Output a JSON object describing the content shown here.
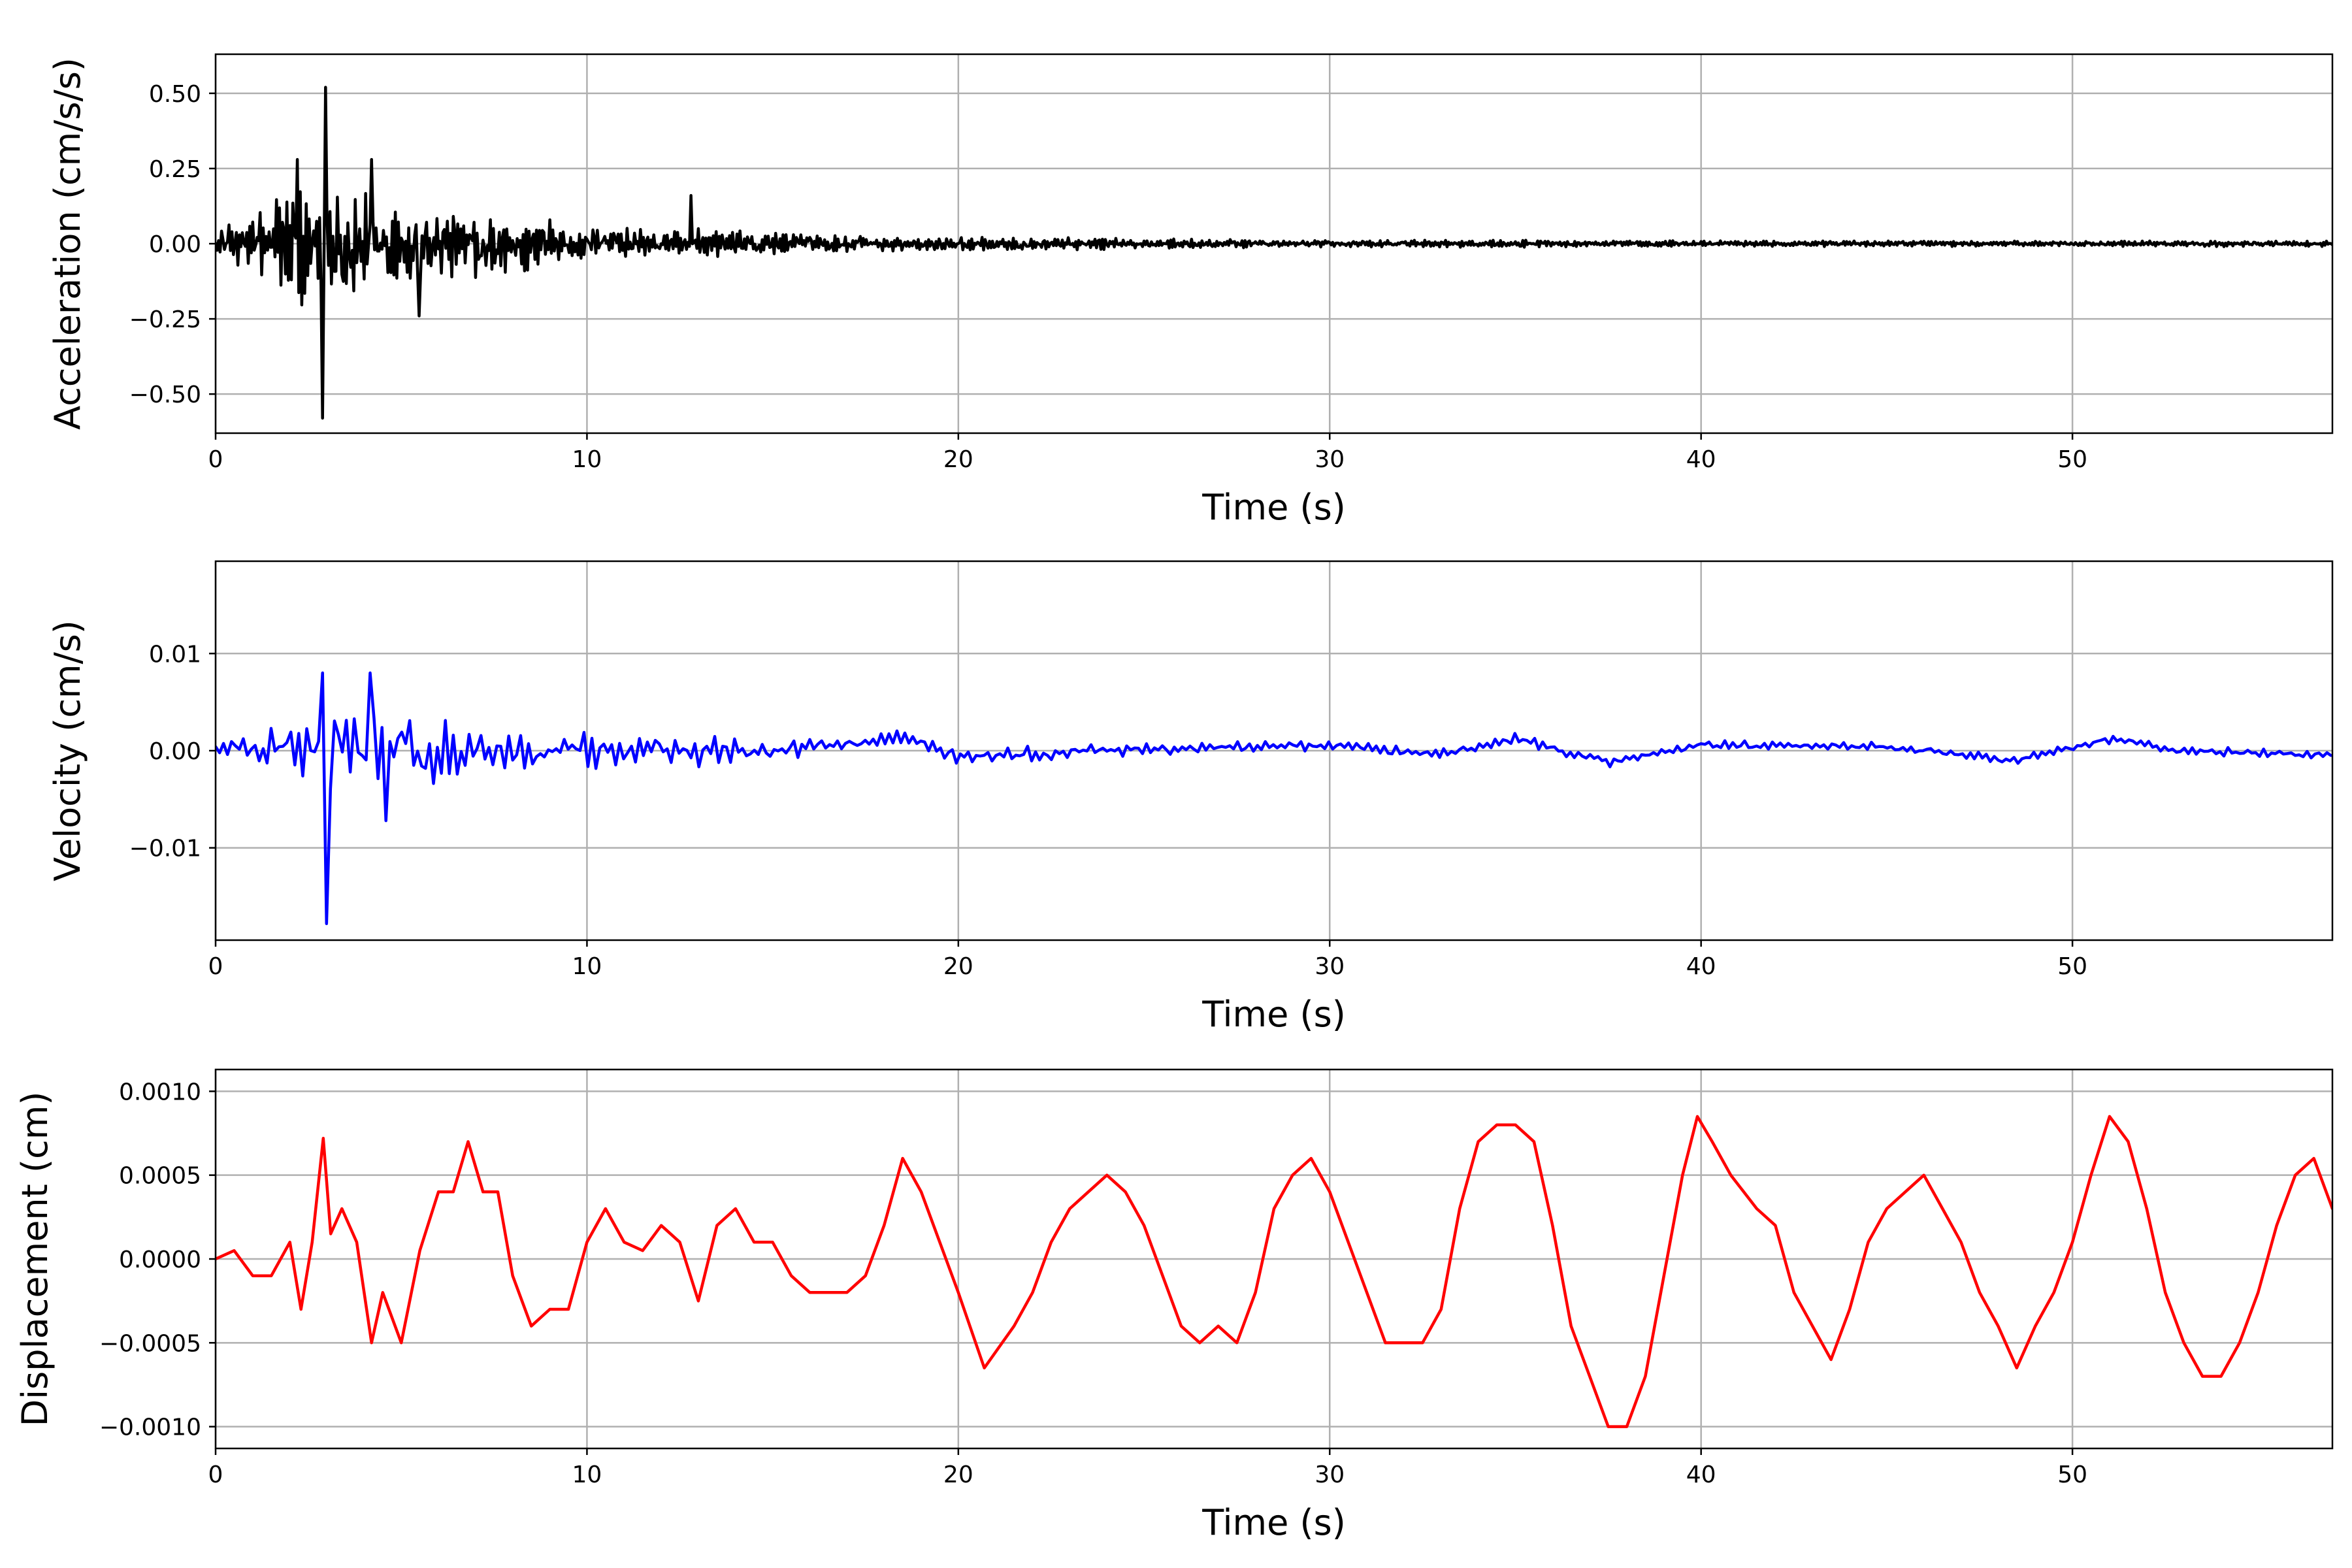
{
  "chart_data": [
    {
      "type": "line",
      "xlabel": "Time (s)",
      "ylabel": "Acceleration (cm/s/s)",
      "xlim": [
        0,
        57
      ],
      "ylim": [
        -0.63,
        0.63
      ],
      "xticks": [
        0,
        10,
        20,
        30,
        40,
        50
      ],
      "xtick_labels": [
        "0",
        "10",
        "20",
        "30",
        "40",
        "50"
      ],
      "yticks": [
        -0.5,
        -0.25,
        0,
        0.25,
        0.5
      ],
      "ytick_labels": [
        "−0.50",
        "−0.25",
        "0.00",
        "0.25",
        "0.50"
      ],
      "grid": true,
      "series": [
        {
          "color": "#000000",
          "envelope": {
            "t": [
              0,
              1,
              2,
              2.9,
              3.2,
              4,
              5,
              6,
              7,
              8,
              9,
              10,
              12,
              13,
              14,
              16,
              18,
              20,
              21.5,
              25,
              30,
              35,
              40,
              45,
              50,
              55,
              57
            ],
            "amplitude": [
              0.05,
              0.1,
              0.2,
              0.22,
              0.2,
              0.18,
              0.13,
              0.12,
              0.12,
              0.1,
              0.08,
              0.06,
              0.05,
              0.06,
              0.045,
              0.03,
              0.028,
              0.022,
              0.025,
              0.018,
              0.012,
              0.012,
              0.01,
              0.01,
              0.009,
              0.01,
              0.01
            ]
          },
          "peaks": [
            {
              "t": 2.2,
              "value": 0.28
            },
            {
              "t": 2.95,
              "value": 0.52
            },
            {
              "t": 2.9,
              "value": -0.58
            },
            {
              "t": 4.2,
              "value": 0.28
            },
            {
              "t": 5.5,
              "value": -0.24
            },
            {
              "t": 12.8,
              "value": 0.16
            }
          ],
          "period_s": 0.12
        }
      ]
    },
    {
      "type": "line",
      "xlabel": "Time (s)",
      "ylabel": "Velocity (cm/s)",
      "xlim": [
        0,
        57
      ],
      "ylim": [
        -0.0195,
        0.0195
      ],
      "xticks": [
        0,
        10,
        20,
        30,
        40,
        50
      ],
      "xtick_labels": [
        "0",
        "10",
        "20",
        "30",
        "40",
        "50"
      ],
      "yticks": [
        -0.01,
        0,
        0.01
      ],
      "ytick_labels": [
        "−0.01",
        "0.00",
        "0.01"
      ],
      "grid": true,
      "series": [
        {
          "color": "#0000ff",
          "envelope": {
            "t": [
              0,
              1,
              2,
              3,
              4,
              5,
              6,
              7,
              8,
              10,
              12,
              13,
              15,
              18,
              20,
              25,
              30,
              35,
              40,
              45,
              50,
              55,
              57
            ],
            "amplitude": [
              0.001,
              0.002,
              0.004,
              0.005,
              0.005,
              0.004,
              0.0035,
              0.003,
              0.0025,
              0.002,
              0.0015,
              0.002,
              0.001,
              0.001,
              0.0008,
              0.0008,
              0.0006,
              0.0006,
              0.0005,
              0.0005,
              0.0005,
              0.0005,
              0.0005
            ]
          },
          "baseline": {
            "t": [
              0,
              15,
              18.5,
              20,
              25,
              30,
              33,
              35,
              37.5,
              40,
              45,
              48.5,
              51,
              53,
              57
            ],
            "value": [
              0,
              0,
              0.0012,
              -0.0006,
              0.0002,
              0.0006,
              -0.0004,
              0.0012,
              -0.0012,
              0.0006,
              0.0004,
              -0.001,
              0.0012,
              0,
              -0.0005
            ]
          },
          "peaks": [
            {
              "t": 2.85,
              "value": 0.008
            },
            {
              "t": 2.95,
              "value": -0.0178
            },
            {
              "t": 4.15,
              "value": 0.008
            },
            {
              "t": 4.6,
              "value": -0.0072
            }
          ],
          "period_s": 0.32
        }
      ]
    },
    {
      "type": "line",
      "xlabel": "Time (s)",
      "ylabel": "Displacement (cm)",
      "xlim": [
        0,
        57
      ],
      "ylim": [
        -0.00113,
        0.00113
      ],
      "xticks": [
        0,
        10,
        20,
        30,
        40,
        50
      ],
      "xtick_labels": [
        "0",
        "10",
        "20",
        "30",
        "40",
        "50"
      ],
      "yticks": [
        -0.001,
        -0.0005,
        0,
        0.0005,
        0.001
      ],
      "ytick_labels": [
        "−0.0010",
        "−0.0005",
        "0.0000",
        "0.0005",
        "0.0010"
      ],
      "grid": true,
      "series": [
        {
          "color": "#ff0000",
          "x": [
            0,
            0.5,
            1,
            1.5,
            2,
            2.3,
            2.6,
            2.9,
            3.1,
            3.4,
            3.8,
            4.2,
            4.5,
            5,
            5.5,
            6,
            6.4,
            6.8,
            7.2,
            7.6,
            8,
            8.5,
            9,
            9.5,
            10,
            10.5,
            11,
            11.5,
            12,
            12.5,
            13,
            13.5,
            14,
            14.5,
            15,
            15.5,
            16,
            16.5,
            17,
            17.5,
            18,
            18.5,
            19,
            19.5,
            20,
            20.7,
            21.5,
            22,
            22.5,
            23,
            23.5,
            24,
            24.5,
            25,
            25.5,
            26,
            26.5,
            27,
            27.5,
            28,
            28.5,
            29,
            29.5,
            30,
            30.5,
            31,
            31.5,
            32,
            32.5,
            33,
            33.5,
            34,
            34.5,
            35,
            35.5,
            36,
            36.5,
            37,
            37.5,
            38,
            38.5,
            39,
            39.5,
            39.9,
            40.3,
            40.8,
            41.5,
            42,
            42.5,
            43,
            43.5,
            44,
            44.5,
            45,
            45.5,
            46,
            46.5,
            47,
            47.5,
            48,
            48.5,
            49,
            49.5,
            50,
            50.5,
            51,
            51.5,
            52,
            52.5,
            53,
            53.5,
            54,
            54.5,
            55,
            55.5,
            56,
            56.5,
            57
          ],
          "y": [
            0,
            5e-05,
            -0.0001,
            -0.0001,
            0.0001,
            -0.0003,
            0.0001,
            0.00072,
            0.00015,
            0.0003,
            0.0001,
            -0.0005,
            -0.0002,
            -0.0005,
            5e-05,
            0.0004,
            0.0004,
            0.0007,
            0.0004,
            0.0004,
            -0.0001,
            -0.0004,
            -0.0003,
            -0.0003,
            0.0001,
            0.0003,
            0.0001,
            5e-05,
            0.0002,
            0.0001,
            -0.00025,
            0.0002,
            0.0003,
            0.0001,
            0.0001,
            -0.0001,
            -0.0002,
            -0.0002,
            -0.0002,
            -0.0001,
            0.0002,
            0.0006,
            0.0004,
            0.0001,
            -0.0002,
            -0.00065,
            -0.0004,
            -0.0002,
            0.0001,
            0.0003,
            0.0004,
            0.0005,
            0.0004,
            0.0002,
            -0.0001,
            -0.0004,
            -0.0005,
            -0.0004,
            -0.0005,
            -0.0002,
            0.0003,
            0.0005,
            0.0006,
            0.0004,
            0.0001,
            -0.0002,
            -0.0005,
            -0.0005,
            -0.0005,
            -0.0003,
            0.0003,
            0.0007,
            0.0008,
            0.0008,
            0.0007,
            0.0002,
            -0.0004,
            -0.0007,
            -0.001,
            -0.001,
            -0.0007,
            -0.0001,
            0.0005,
            0.00085,
            0.0007,
            0.0005,
            0.0003,
            0.0002,
            -0.0002,
            -0.0004,
            -0.0006,
            -0.0003,
            0.0001,
            0.0003,
            0.0004,
            0.0005,
            0.0003,
            0.0001,
            -0.0002,
            -0.0004,
            -0.00065,
            -0.0004,
            -0.0002,
            0.0001,
            0.0005,
            0.00085,
            0.0007,
            0.0003,
            -0.0002,
            -0.0005,
            -0.0007,
            -0.0007,
            -0.0005,
            -0.0002,
            0.0002,
            0.0005,
            0.0006,
            0.0003
          ]
        }
      ]
    }
  ]
}
